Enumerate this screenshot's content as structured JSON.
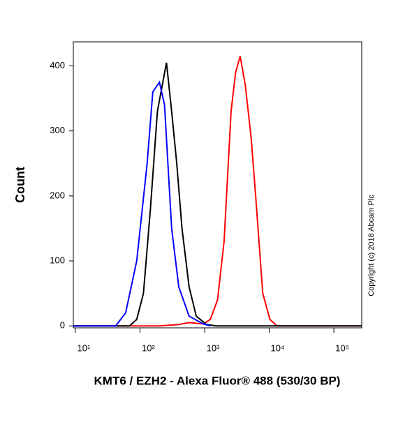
{
  "chart_data": {
    "type": "line",
    "y_label": "Count",
    "x_label": "KMT6 / EZH2 - Alexa Fluor® 488 (530/30 BP)",
    "annotation": "Copyright (c) 2018 Abcam Plc",
    "x_scale": "log",
    "xlim": [
      9.3,
      270000
    ],
    "xticks": [
      {
        "value": 10,
        "label": "10¹"
      },
      {
        "value": 100,
        "label": "10²"
      },
      {
        "value": 1000,
        "label": "10³"
      },
      {
        "value": 10000,
        "label": "10⁴"
      },
      {
        "value": 100000,
        "label": "10⁵"
      }
    ],
    "ylim": [
      -3,
      437
    ],
    "yticks": [
      0,
      100,
      200,
      300,
      400
    ],
    "series": [
      {
        "color": "#ff0000",
        "x": [
          9.3,
          200,
          398,
          575,
          955,
          1230,
          1585,
          2000,
          2570,
          3020,
          3550,
          4270,
          5250,
          6170,
          7940,
          10230,
          13200,
          270000
        ],
        "values": [
          0,
          0,
          2,
          5,
          3,
          10,
          40,
          130,
          330,
          390,
          415,
          370,
          290,
          200,
          50,
          10,
          0,
          0
        ]
      },
      {
        "color": "#000000",
        "x": [
          9.3,
          69,
          89,
          113,
          145,
          186,
          257,
          309,
          371,
          447,
          575,
          741,
          1070,
          1500,
          270000
        ],
        "values": [
          0,
          0,
          10,
          50,
          180,
          330,
          405,
          330,
          250,
          150,
          60,
          15,
          2,
          0,
          0
        ]
      },
      {
        "color": "#0000ff",
        "x": [
          9.3,
          42,
          60,
          89,
          129,
          158,
          200,
          240,
          309,
          398,
          575,
          955,
          1230
        ],
        "values": [
          0,
          0,
          20,
          100,
          250,
          360,
          375,
          340,
          150,
          60,
          15,
          3,
          0
        ]
      }
    ]
  }
}
